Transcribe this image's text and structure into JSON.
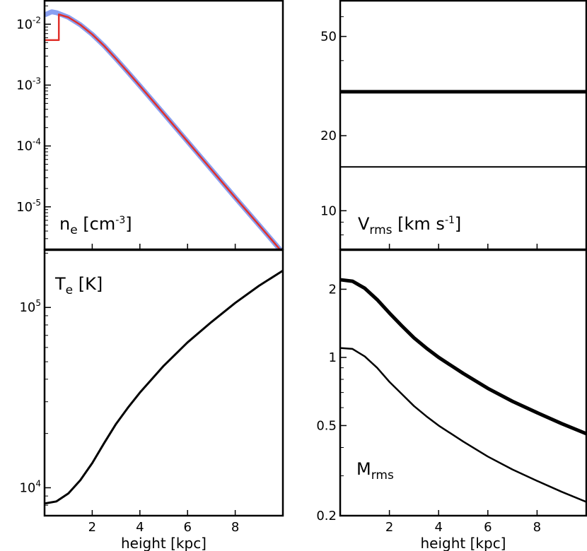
{
  "chart_data": [
    {
      "id": "ne",
      "type": "line",
      "ylog": true,
      "xlim": [
        0,
        10
      ],
      "ylim": [
        2e-06,
        0.025
      ],
      "xticks": [
        2,
        4,
        6,
        8
      ],
      "yticks": [
        {
          "v": 0.01,
          "base": "10",
          "exp": "-2"
        },
        {
          "v": 0.001,
          "base": "10",
          "exp": "-3"
        },
        {
          "v": 0.0001,
          "base": "10",
          "exp": "-4"
        },
        {
          "v": 1e-05,
          "base": "10",
          "exp": "-5"
        }
      ],
      "label": {
        "main": "n",
        "sub": "e",
        "pre": " [cm",
        "sup": "-3",
        "post": "]"
      },
      "series": [
        {
          "name": "model",
          "color": "#8aa0f0",
          "width": 7,
          "x": [
            0.05,
            0.3,
            0.5,
            1,
            1.5,
            2,
            2.5,
            3,
            3.5,
            4,
            5,
            6,
            7,
            8,
            9,
            10
          ],
          "y": [
            0.0145,
            0.016,
            0.0155,
            0.013,
            0.0098,
            0.0068,
            0.0044,
            0.0027,
            0.00163,
            0.00097,
            0.00034,
            0.000118,
            4.1e-05,
            1.42e-05,
            5e-06,
            1.75e-06
          ]
        },
        {
          "name": "step",
          "color": "#e0302a",
          "width": 2.5,
          "x": [
            0.05,
            0.6,
            0.6,
            1,
            1.5,
            2,
            2.5,
            3,
            3.5,
            4,
            5,
            6,
            7,
            8,
            9,
            10
          ],
          "y": [
            0.0055,
            0.0055,
            0.0145,
            0.013,
            0.0098,
            0.0068,
            0.0044,
            0.0027,
            0.00163,
            0.00097,
            0.00034,
            0.000118,
            4.1e-05,
            1.42e-05,
            5e-06,
            1.75e-06
          ]
        }
      ]
    },
    {
      "id": "vrms",
      "type": "line",
      "ylog": true,
      "xlim": [
        0,
        10
      ],
      "ylim": [
        7,
        70
      ],
      "xticks": [
        2,
        4,
        6,
        8
      ],
      "yticks": [
        {
          "v": 50,
          "t": "50"
        },
        {
          "v": 20,
          "t": "20"
        },
        {
          "v": 10,
          "t": "10"
        }
      ],
      "label": {
        "main": "V",
        "sub": "rms",
        "pre": " [km s",
        "sup": "-1",
        "post": "]"
      },
      "series": [
        {
          "name": "thick",
          "color": "#000000",
          "width": 5,
          "x": [
            0,
            10
          ],
          "y": [
            30,
            30
          ]
        },
        {
          "name": "thin",
          "color": "#000000",
          "width": 2,
          "x": [
            0,
            10
          ],
          "y": [
            15,
            15
          ]
        }
      ]
    },
    {
      "id": "te",
      "type": "line",
      "ylog": true,
      "xlim": [
        0,
        10
      ],
      "ylim": [
        7000,
        210000
      ],
      "xticks": [
        2,
        4,
        6,
        8
      ],
      "xlabel": "height [kpc]",
      "yticks": [
        {
          "v": 100000,
          "base": "10",
          "exp": "5"
        },
        {
          "v": 10000,
          "base": "10",
          "exp": "4"
        }
      ],
      "label": {
        "main": "T",
        "sub": "e",
        "pre": " [K]",
        "sup": "",
        "post": ""
      },
      "series": [
        {
          "name": "Te",
          "color": "#000000",
          "width": 3,
          "x": [
            0.05,
            0.5,
            1,
            1.5,
            2,
            2.5,
            3,
            3.5,
            4,
            5,
            6,
            7,
            8,
            9,
            10
          ],
          "y": [
            8200,
            8400,
            9300,
            11000,
            13700,
            17700,
            22600,
            27800,
            33700,
            47500,
            64000,
            83000,
            106000,
            132000,
            160000
          ]
        }
      ]
    },
    {
      "id": "mrms",
      "type": "line",
      "ylog": true,
      "xlim": [
        0,
        10
      ],
      "ylim": [
        0.2,
        3.0
      ],
      "xticks": [
        2,
        4,
        6,
        8
      ],
      "xlabel": "height [kpc]",
      "yticks": [
        {
          "v": 2,
          "t": "2"
        },
        {
          "v": 1,
          "t": "1"
        },
        {
          "v": 0.5,
          "t": "0.5"
        },
        {
          "v": 0.2,
          "t": "0.2"
        }
      ],
      "label": {
        "main": "M",
        "sub": "rms",
        "pre": "",
        "sup": "",
        "post": ""
      },
      "series": [
        {
          "name": "thick",
          "color": "#000000",
          "width": 5,
          "x": [
            0.05,
            0.5,
            1,
            1.5,
            2,
            2.5,
            3,
            3.5,
            4,
            5,
            6,
            7,
            8,
            9,
            10
          ],
          "y": [
            2.2,
            2.17,
            2.02,
            1.8,
            1.57,
            1.38,
            1.22,
            1.1,
            1.0,
            0.85,
            0.73,
            0.64,
            0.57,
            0.51,
            0.46
          ]
        },
        {
          "name": "thin",
          "color": "#000000",
          "width": 2.5,
          "x": [
            0.05,
            0.5,
            1,
            1.5,
            2,
            2.5,
            3,
            3.5,
            4,
            5,
            6,
            7,
            8,
            9,
            10
          ],
          "y": [
            1.1,
            1.09,
            1.01,
            0.9,
            0.78,
            0.69,
            0.61,
            0.55,
            0.5,
            0.425,
            0.365,
            0.32,
            0.285,
            0.255,
            0.23
          ]
        }
      ]
    }
  ]
}
